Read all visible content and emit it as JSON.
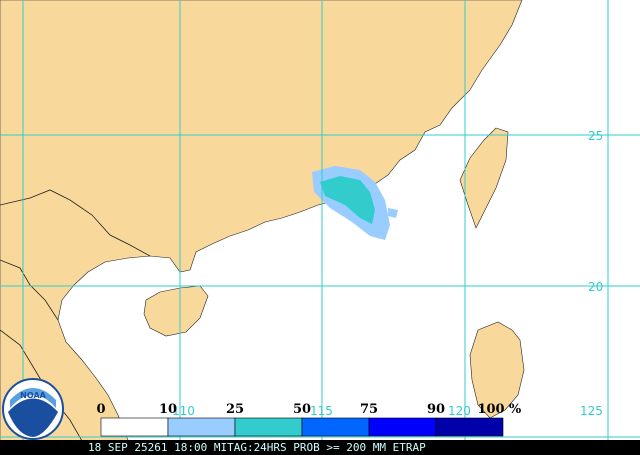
{
  "map": {
    "lat_labels": [
      "25",
      "20"
    ],
    "lon_labels": [
      "110",
      "115",
      "120",
      "125"
    ]
  },
  "legend": {
    "labels": [
      "0",
      "10",
      "25",
      "50",
      "75",
      "90",
      "100",
      "%"
    ],
    "colors": [
      "#ffffff",
      "#99ccff",
      "#33cccc",
      "#0066ff",
      "#0000ff",
      "#0000aa"
    ]
  },
  "logo": "NOAA",
  "footer": "18 SEP 25261 18:00 MITAG:24HRS PROB >= 200 MM ETRAP"
}
